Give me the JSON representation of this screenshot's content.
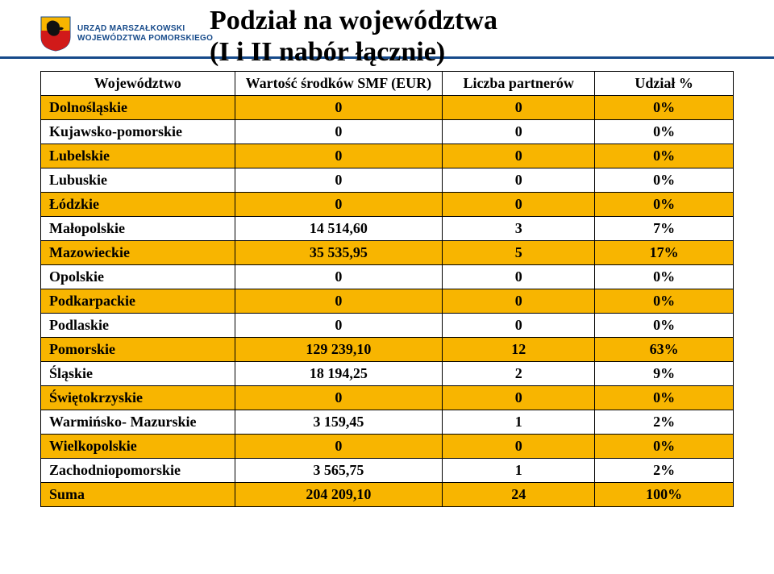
{
  "branding": {
    "line1": "URZĄD MARSZAŁKOWSKI",
    "line2": "WOJEWÓDZTWA POMORSKIEGO",
    "shield_colors": {
      "top": "#f8b500",
      "bottom": "#d11a1a",
      "griffin": "#111"
    }
  },
  "title": {
    "line1": "Podział na województwa",
    "line2": "(I i II nabór łącznie)"
  },
  "table": {
    "headers": {
      "col1": "Województwo",
      "col2": "Wartość środków SMF (EUR)",
      "col3": "Liczba partnerów",
      "col4": "Udział %"
    },
    "rows": [
      {
        "name": "Dolnośląskie",
        "value": "0",
        "partners": "0",
        "share": "0%"
      },
      {
        "name": "Kujawsko-pomorskie",
        "value": "0",
        "partners": "0",
        "share": "0%"
      },
      {
        "name": "Lubelskie",
        "value": "0",
        "partners": "0",
        "share": "0%"
      },
      {
        "name": "Lubuskie",
        "value": "0",
        "partners": "0",
        "share": "0%"
      },
      {
        "name": "Łódzkie",
        "value": "0",
        "partners": "0",
        "share": "0%"
      },
      {
        "name": "Małopolskie",
        "value": "14 514,60",
        "partners": "3",
        "share": "7%"
      },
      {
        "name": "Mazowieckie",
        "value": "35 535,95",
        "partners": "5",
        "share": "17%"
      },
      {
        "name": "Opolskie",
        "value": "0",
        "partners": "0",
        "share": "0%"
      },
      {
        "name": "Podkarpackie",
        "value": "0",
        "partners": "0",
        "share": "0%"
      },
      {
        "name": "Podlaskie",
        "value": "0",
        "partners": "0",
        "share": "0%"
      },
      {
        "name": "Pomorskie",
        "value": "129 239,10",
        "partners": "12",
        "share": "63%"
      },
      {
        "name": "Śląskie",
        "value": "18 194,25",
        "partners": "2",
        "share": "9%"
      },
      {
        "name": "Świętokrzyskie",
        "value": "0",
        "partners": "0",
        "share": "0%"
      },
      {
        "name": "Warmińsko- Mazurskie",
        "value": "3 159,45",
        "partners": "1",
        "share": "2%"
      },
      {
        "name": "Wielkopolskie",
        "value": "0",
        "partners": "0",
        "share": "0%"
      },
      {
        "name": "Zachodniopomorskie",
        "value": "3 565,75",
        "partners": "1",
        "share": "2%"
      },
      {
        "name": "Suma",
        "value": "204 209,10",
        "partners": "24",
        "share": "100%"
      }
    ],
    "band_color": "#f8b500",
    "border_color": "#000000",
    "font_size_pt": 14
  }
}
